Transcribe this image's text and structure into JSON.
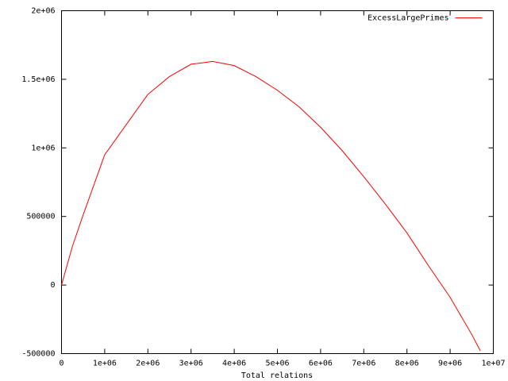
{
  "chart_data": {
    "type": "line",
    "xlabel": "Total relations",
    "x": [
      0,
      250000,
      500000,
      1000000,
      1500000,
      2000000,
      2500000,
      3000000,
      3500000,
      4000000,
      4500000,
      5000000,
      5500000,
      6000000,
      6500000,
      7000000,
      7500000,
      8000000,
      8500000,
      9000000,
      9500000,
      9700000
    ],
    "series": [
      {
        "name": "ExcessLargePrimes",
        "color": "#ff0000",
        "values": [
          0,
          280000,
          510000,
          950000,
          1170000,
          1390000,
          1520000,
          1610000,
          1630000,
          1600000,
          1520000,
          1420000,
          1300000,
          1150000,
          980000,
          790000,
          590000,
          380000,
          140000,
          -90000,
          -360000,
          -480000
        ]
      }
    ],
    "xlim": [
      0,
      10000000
    ],
    "xticks": [
      0,
      {
        "value": 1000000,
        "label": "1e+06"
      },
      {
        "value": 2000000,
        "label": "2e+06"
      },
      {
        "value": 3000000,
        "label": "3e+06"
      },
      {
        "value": 4000000,
        "label": "4e+06"
      },
      {
        "value": 5000000,
        "label": "5e+06"
      },
      {
        "value": 6000000,
        "label": "6e+06"
      },
      {
        "value": 7000000,
        "label": "7e+06"
      },
      {
        "value": 8000000,
        "label": "8e+06"
      },
      {
        "value": 9000000,
        "label": "9e+06"
      },
      {
        "value": 10000000,
        "label": "1e+07"
      }
    ],
    "ylim": [
      -500000,
      2000000
    ],
    "yticks": [
      -500000,
      0,
      500000,
      {
        "value": 1000000,
        "label": "1e+06"
      },
      {
        "value": 1500000,
        "label": "1.5e+06"
      },
      {
        "value": 2000000,
        "label": "2e+06"
      }
    ],
    "legend": "top-right",
    "grid": false
  }
}
